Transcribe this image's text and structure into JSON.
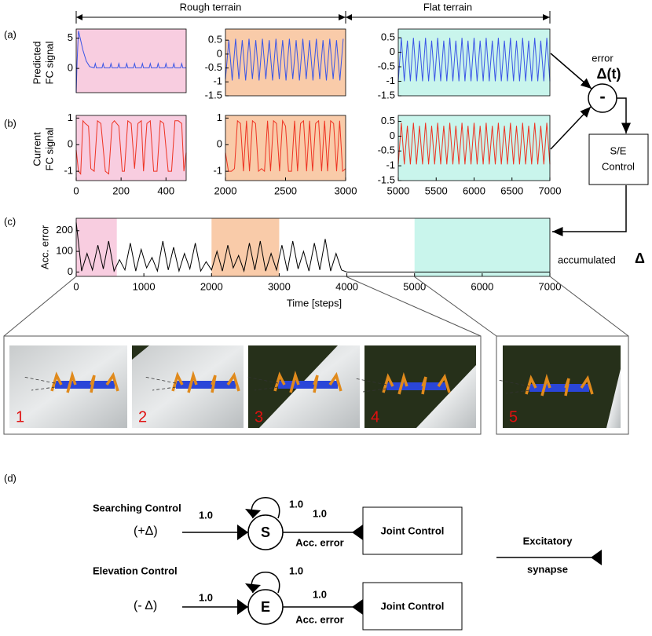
{
  "headers": {
    "rough": "Rough terrain",
    "flat": "Flat terrain"
  },
  "panel_labels": [
    "(a)",
    "(b)",
    "(c)",
    "(d)"
  ],
  "row_labels": {
    "a": [
      "Predicted",
      "FC signal"
    ],
    "b": [
      "Current",
      "FC signal"
    ],
    "c": "Acc. error",
    "time": "Time [steps]"
  },
  "chart_data": [
    {
      "type": "line",
      "color": "#3a55e6",
      "background": "#f8cde0",
      "xlim": [
        0,
        490
      ],
      "ylim": [
        -4,
        6.5
      ],
      "yticks": [
        0,
        5
      ],
      "x": [
        0,
        4,
        10,
        18,
        30,
        45,
        60,
        80,
        85,
        90,
        115,
        120,
        125,
        150,
        155,
        160,
        185,
        190,
        195,
        220,
        225,
        230,
        255,
        260,
        265,
        290,
        295,
        300,
        325,
        330,
        335,
        360,
        365,
        370,
        395,
        400,
        405,
        430,
        435,
        440,
        465,
        470,
        475,
        490
      ],
      "values": [
        -4,
        1,
        6.2,
        5,
        3,
        1.2,
        0.3,
        0.1,
        0.8,
        0.1,
        0.1,
        0.8,
        0.1,
        0.1,
        0.8,
        0.1,
        0.1,
        0.8,
        0.1,
        0.1,
        0.8,
        0.1,
        0.1,
        0.8,
        0.1,
        0.1,
        0.8,
        0.1,
        0.1,
        0.8,
        0.1,
        0.1,
        0.8,
        0.1,
        0.1,
        0.8,
        0.1,
        0.1,
        0.8,
        0.1,
        0.1,
        0.8,
        0.1,
        0.1
      ]
    },
    {
      "type": "line",
      "color": "#3a55e6",
      "background": "#f9cba9",
      "xlim": [
        2000,
        3000
      ],
      "ylim": [
        -1.5,
        0.9
      ],
      "yticks": [
        0.5,
        0,
        -0.5,
        -1,
        -1.5
      ],
      "x": [
        2000,
        2028,
        2056,
        2084,
        2112,
        2140,
        2168,
        2196,
        2224,
        2252,
        2280,
        2308,
        2336,
        2364,
        2392,
        2420,
        2448,
        2476,
        2504,
        2532,
        2560,
        2588,
        2616,
        2644,
        2672,
        2700,
        2728,
        2756,
        2784,
        2812,
        2840,
        2868,
        2896,
        2924,
        2952,
        2980
      ],
      "values": [
        -0.9,
        0.5,
        -0.95,
        0.55,
        -0.9,
        0.5,
        -0.95,
        0.55,
        -0.9,
        0.5,
        -0.95,
        0.55,
        -0.9,
        0.5,
        -0.95,
        0.55,
        -0.9,
        0.5,
        -0.95,
        0.55,
        -0.9,
        0.5,
        -0.95,
        0.55,
        -0.9,
        0.5,
        -0.95,
        0.55,
        -0.9,
        0.5,
        -0.95,
        0.55,
        -0.9,
        0.5,
        -0.95,
        0.55
      ]
    },
    {
      "type": "line",
      "color": "#3a55e6",
      "background": "#c9f5ec",
      "xlim": [
        5000,
        7000
      ],
      "ylim": [
        -1.5,
        0.8
      ],
      "yticks": [
        0.5,
        0,
        -0.5,
        -1,
        -1.5
      ],
      "x": [
        5000,
        5040,
        5080,
        5120,
        5160,
        5200,
        5240,
        5280,
        5320,
        5360,
        5400,
        5440,
        5480,
        5520,
        5560,
        5600,
        5640,
        5680,
        5720,
        5760,
        5800,
        5840,
        5880,
        5920,
        5960,
        6000,
        6040,
        6080,
        6120,
        6160,
        6200,
        6240,
        6280,
        6320,
        6360,
        6400,
        6440,
        6480,
        6520,
        6560,
        6600,
        6640,
        6680,
        6720,
        6760,
        6800,
        6840,
        6880,
        6920,
        6960,
        7000
      ],
      "values": [
        -1,
        0.5,
        -1,
        0.4,
        -1,
        0.5,
        -1,
        0.4,
        -1,
        0.5,
        -1,
        0.4,
        -1,
        0.5,
        -1,
        0.4,
        -1,
        0.5,
        -1,
        0.4,
        -1,
        0.5,
        -1,
        0.4,
        -1,
        0.5,
        -1,
        0.4,
        -1,
        0.5,
        -1,
        0.4,
        -1,
        0.5,
        -1,
        0.4,
        -1,
        0.5,
        -1,
        0.4,
        -1,
        0.5,
        -1,
        0.4,
        -1,
        0.5,
        -1,
        0.4,
        -1,
        0.5,
        -1
      ]
    },
    {
      "type": "line",
      "color": "#ee3322",
      "background": "#f8cde0",
      "xlim": [
        0,
        490
      ],
      "ylim": [
        -1.35,
        1.1
      ],
      "yticks": [
        1,
        0,
        -1
      ],
      "xticks": [
        0,
        200,
        400
      ],
      "x": [
        0,
        10,
        20,
        30,
        40,
        55,
        65,
        80,
        95,
        110,
        130,
        145,
        160,
        170,
        190,
        205,
        215,
        230,
        245,
        260,
        275,
        290,
        300,
        315,
        330,
        345,
        360,
        375,
        390,
        410,
        425,
        440,
        455,
        470,
        480,
        490
      ],
      "values": [
        -0.2,
        -1,
        -1.1,
        0.9,
        0.8,
        0.7,
        -0.9,
        -1,
        0.9,
        0.8,
        -1,
        -1.1,
        0.8,
        0.9,
        0.7,
        -1,
        -1,
        0.9,
        0.8,
        -0.9,
        0.8,
        0.9,
        -1,
        0.8,
        0.9,
        -1,
        -1,
        0.9,
        0.8,
        -1,
        -1,
        0.9,
        0.9,
        0.8,
        -1,
        -0.3
      ]
    },
    {
      "type": "line",
      "color": "#ee3322",
      "background": "#f9cba9",
      "xlim": [
        2000,
        3000
      ],
      "ylim": [
        -1.35,
        1.1
      ],
      "yticks": [
        1,
        0,
        -1
      ],
      "xticks": [
        2000,
        2500,
        3000
      ],
      "x": [
        2000,
        2025,
        2050,
        2075,
        2100,
        2125,
        2150,
        2175,
        2200,
        2225,
        2250,
        2275,
        2300,
        2325,
        2350,
        2375,
        2400,
        2425,
        2450,
        2475,
        2500,
        2525,
        2550,
        2575,
        2600,
        2625,
        2650,
        2675,
        2700,
        2725,
        2750,
        2775,
        2800,
        2825,
        2850,
        2875,
        2900,
        2925,
        2950,
        2975,
        3000
      ],
      "values": [
        -0.3,
        -1,
        -1,
        -0.9,
        0.9,
        0.8,
        -1,
        0.9,
        -1,
        0.9,
        0.8,
        -1,
        -0.9,
        -1,
        0.9,
        -1,
        0.9,
        0.8,
        -1,
        0.9,
        0.7,
        -1,
        -1,
        0.9,
        -1,
        0.8,
        0.9,
        -1,
        0.9,
        -1,
        0.8,
        0.9,
        -1,
        0.9,
        -1,
        0.9,
        0.8,
        -1,
        0.9,
        -1,
        -0.9
      ]
    },
    {
      "type": "line",
      "color": "#ee3322",
      "background": "#c9f5ec",
      "xlim": [
        5000,
        7000
      ],
      "ylim": [
        -1.5,
        0.7
      ],
      "yticks": [
        0.5,
        0,
        -0.5,
        -1,
        -1.5
      ],
      "xticks": [
        5000,
        5500,
        6000,
        6500,
        7000
      ],
      "x": [
        5000,
        5040,
        5080,
        5120,
        5160,
        5200,
        5240,
        5280,
        5320,
        5360,
        5400,
        5440,
        5480,
        5520,
        5560,
        5600,
        5640,
        5680,
        5720,
        5760,
        5800,
        5840,
        5880,
        5920,
        5960,
        6000,
        6040,
        6080,
        6120,
        6160,
        6200,
        6240,
        6280,
        6320,
        6360,
        6400,
        6440,
        6480,
        6520,
        6560,
        6600,
        6640,
        6680,
        6720,
        6760,
        6800,
        6840,
        6880,
        6920,
        6960,
        7000
      ],
      "values": [
        -0.95,
        0.45,
        -0.95,
        0.35,
        -0.95,
        0.45,
        -0.95,
        0.35,
        -0.95,
        0.45,
        -0.95,
        0.35,
        -0.95,
        0.45,
        -0.95,
        0.35,
        -0.95,
        0.45,
        -0.95,
        0.35,
        -0.95,
        0.45,
        -0.95,
        0.35,
        -0.95,
        0.45,
        -0.95,
        0.35,
        -0.95,
        0.45,
        -0.95,
        0.35,
        -0.95,
        0.45,
        -0.95,
        0.35,
        -0.95,
        0.45,
        -0.95,
        0.35,
        -0.95,
        0.45,
        -0.95,
        0.35,
        -0.95,
        0.45,
        -0.95,
        0.35,
        -0.95,
        0.45,
        -0.95
      ]
    },
    {
      "type": "line",
      "color": "#000000",
      "xlim": [
        0,
        7000
      ],
      "ylim": [
        -21,
        260
      ],
      "yticks": [
        0,
        100,
        200
      ],
      "xticks": [
        0,
        1000,
        2000,
        3000,
        4000,
        5000,
        6000,
        7000
      ],
      "regions": [
        {
          "from": 0,
          "to": 600,
          "color": "#f8cde0"
        },
        {
          "from": 2000,
          "to": 3000,
          "color": "#f9cba9"
        },
        {
          "from": 5000,
          "to": 7000,
          "color": "#c9f5ec"
        }
      ],
      "x": [
        0,
        80,
        160,
        240,
        320,
        400,
        480,
        560,
        640,
        720,
        800,
        880,
        960,
        1040,
        1120,
        1200,
        1280,
        1360,
        1440,
        1520,
        1600,
        1680,
        1760,
        1840,
        1920,
        2000,
        2080,
        2160,
        2240,
        2320,
        2400,
        2480,
        2560,
        2640,
        2720,
        2800,
        2880,
        2960,
        3040,
        3120,
        3200,
        3280,
        3360,
        3440,
        3520,
        3600,
        3680,
        3760,
        3840,
        3920,
        4000,
        7000
      ],
      "values": [
        240,
        5,
        90,
        10,
        130,
        15,
        150,
        5,
        60,
        10,
        140,
        5,
        110,
        20,
        70,
        5,
        150,
        10,
        120,
        5,
        90,
        15,
        140,
        5,
        50,
        10,
        100,
        5,
        130,
        20,
        80,
        5,
        140,
        10,
        150,
        5,
        90,
        10,
        130,
        5,
        150,
        15,
        100,
        5,
        140,
        10,
        160,
        5,
        90,
        10,
        0,
        0
      ]
    }
  ],
  "flow": {
    "error": "error",
    "delta_t": "Δ(t)",
    "minus": "-",
    "control": [
      "S/E",
      "Control"
    ],
    "accumulated": "accumulated",
    "delta": "Δ"
  },
  "snapshots": [
    "1",
    "2",
    "3",
    "4",
    "5"
  ],
  "network": {
    "search": {
      "title": "Searching Control",
      "input": "(+Δ)",
      "in_weight": "1.0",
      "neuron": "S",
      "self_weight": "1.0",
      "out_weight": "1.0",
      "out_label": "Acc. error",
      "target": "Joint Control"
    },
    "elevation": {
      "title": "Elevation Control",
      "input": "(- Δ)",
      "in_weight": "1.0",
      "neuron": "E",
      "self_weight": "1.0",
      "out_weight": "1.0",
      "out_label": "Acc. error",
      "target": "Joint Control"
    },
    "legend": [
      "Excitatory",
      "synapse"
    ]
  }
}
